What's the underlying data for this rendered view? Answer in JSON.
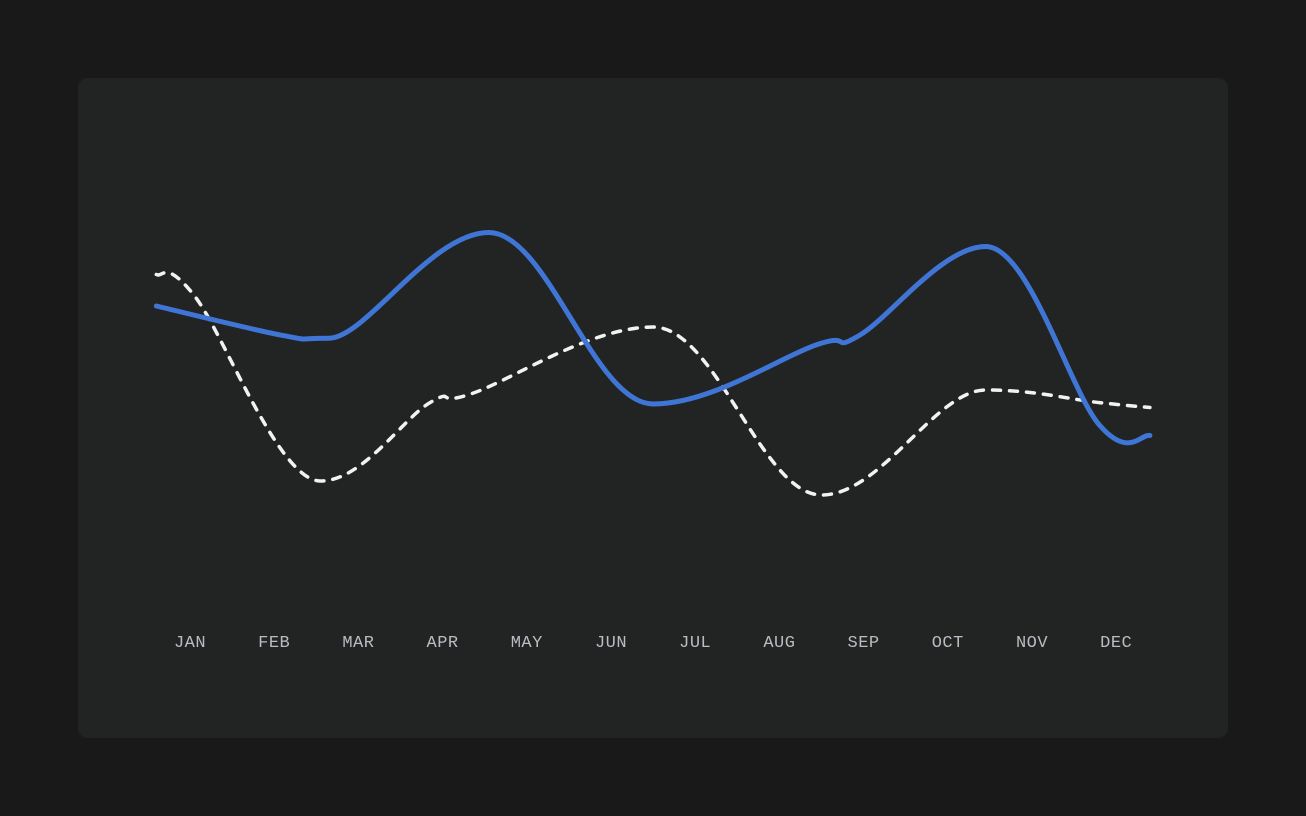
{
  "chart_data": {
    "type": "line",
    "categories": [
      "JAN",
      "FEB",
      "MAR",
      "APR",
      "MAY",
      "JUN",
      "JUL",
      "AUG",
      "SEP",
      "OCT",
      "NOV",
      "DEC"
    ],
    "x_positions": [
      0,
      1,
      2,
      3,
      4,
      5,
      6,
      7,
      8,
      9,
      10,
      11
    ],
    "series": [
      {
        "color": "#3f76d6",
        "style": "solid",
        "points": [
          [
            -0.4,
            62
          ],
          [
            1.1,
            57.8
          ],
          [
            1.65,
            57.4
          ],
          [
            3.55,
            72.5
          ],
          [
            5.5,
            48
          ],
          [
            7.45,
            56.5
          ],
          [
            7.95,
            57.8
          ],
          [
            9.45,
            70.5
          ],
          [
            10.8,
            45
          ],
          [
            11.4,
            43.5
          ]
        ]
      },
      {
        "color": "#f2f2f2",
        "style": "dashed",
        "points": [
          [
            -0.4,
            66.5
          ],
          [
            0.05,
            63.5
          ],
          [
            1.55,
            37
          ],
          [
            2.85,
            48.2
          ],
          [
            3.35,
            49.5
          ],
          [
            5.5,
            59
          ],
          [
            7.5,
            35
          ],
          [
            9.45,
            50
          ],
          [
            10.8,
            48.2
          ],
          [
            11.4,
            47.5
          ]
        ]
      }
    ],
    "ylim": [
      20,
      80
    ],
    "grid": false,
    "legend": "none"
  }
}
